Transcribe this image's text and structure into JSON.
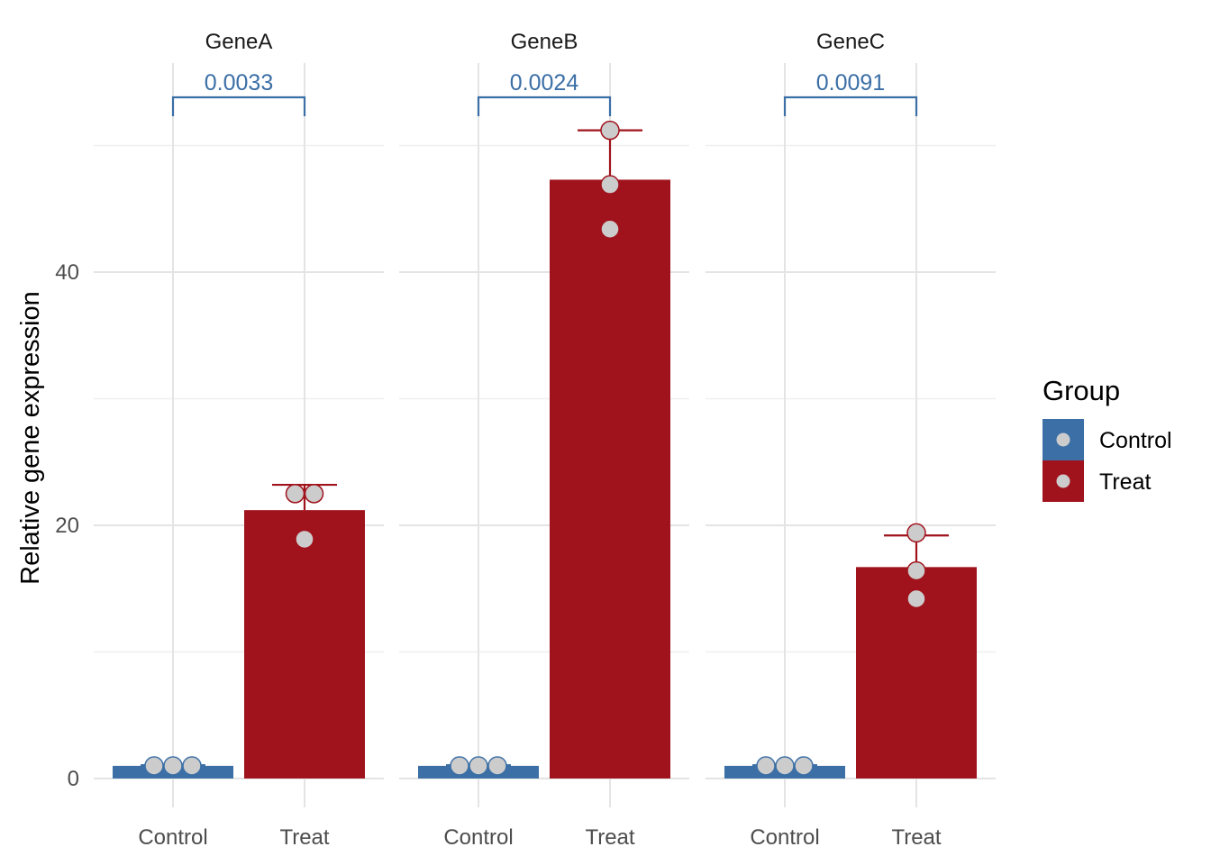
{
  "chart_data": {
    "type": "bar",
    "facets": [
      "GeneA",
      "GeneB",
      "GeneC"
    ],
    "categories": [
      "Control",
      "Treat"
    ],
    "ylabel": "Relative gene expression",
    "ylim": [
      0,
      50
    ],
    "yticks": [
      0,
      20,
      40
    ],
    "grid": true,
    "legend": {
      "title": "Group",
      "position": "right",
      "entries": [
        "Control",
        "Treat"
      ]
    },
    "colors": {
      "Control": "#3b6fa6",
      "Treat": "#a0131c",
      "points": "#cccccc",
      "pvalue": "#3b6fa6"
    },
    "series": [
      {
        "facet": "GeneA",
        "bars": {
          "Control": 1.0,
          "Treat": 21.2
        },
        "error_upper": {
          "Control": 1.05,
          "Treat": 23.2
        },
        "points": {
          "Control": [
            1.0,
            1.0,
            1.0
          ],
          "Treat": [
            22.5,
            22.5,
            18.9
          ]
        },
        "p_value": "0.0033"
      },
      {
        "facet": "GeneB",
        "bars": {
          "Control": 1.0,
          "Treat": 47.3
        },
        "error_upper": {
          "Control": 1.05,
          "Treat": 51.2
        },
        "points": {
          "Control": [
            1.0,
            1.0,
            1.0
          ],
          "Treat": [
            51.2,
            46.9,
            43.4
          ]
        },
        "p_value": "0.0024"
      },
      {
        "facet": "GeneC",
        "bars": {
          "Control": 1.0,
          "Treat": 16.7
        },
        "error_upper": {
          "Control": 1.05,
          "Treat": 19.2
        },
        "points": {
          "Control": [
            1.0,
            1.0,
            1.0
          ],
          "Treat": [
            19.4,
            16.4,
            14.2
          ]
        },
        "p_value": "0.0091"
      }
    ]
  }
}
